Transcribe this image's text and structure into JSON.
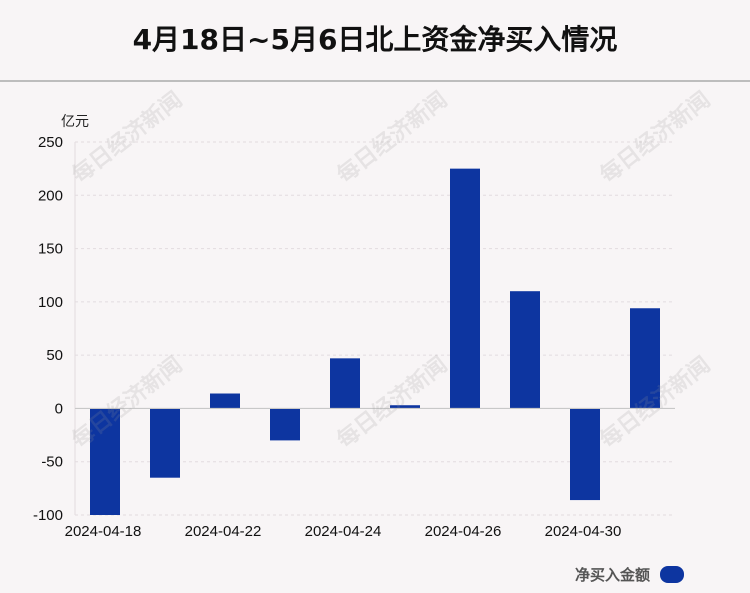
{
  "title": "4月18日~5月6日北上资金净买入情况",
  "unit": "亿元",
  "legend_label": "净买入金额",
  "watermark": "每日经济新闻",
  "colors": {
    "bar": "#0d35a0",
    "background": "#f8f5f6"
  },
  "chart_data": {
    "type": "bar",
    "title": "4月18日~5月6日北上资金净买入情况",
    "ylabel": "亿元",
    "xlabel": "",
    "ylim": [
      -100,
      250
    ],
    "yticks": [
      250,
      200,
      150,
      100,
      50,
      0,
      -50,
      -100
    ],
    "xtick_labels": [
      "2024-04-18",
      "2024-04-22",
      "2024-04-24",
      "2024-04-26",
      "2024-04-30"
    ],
    "grid": true,
    "legend": "bottom-right",
    "series": [
      {
        "name": "净买入金额",
        "values": [
          -100,
          -65,
          14,
          -30,
          47,
          3,
          225,
          110,
          -86,
          94
        ]
      }
    ]
  }
}
